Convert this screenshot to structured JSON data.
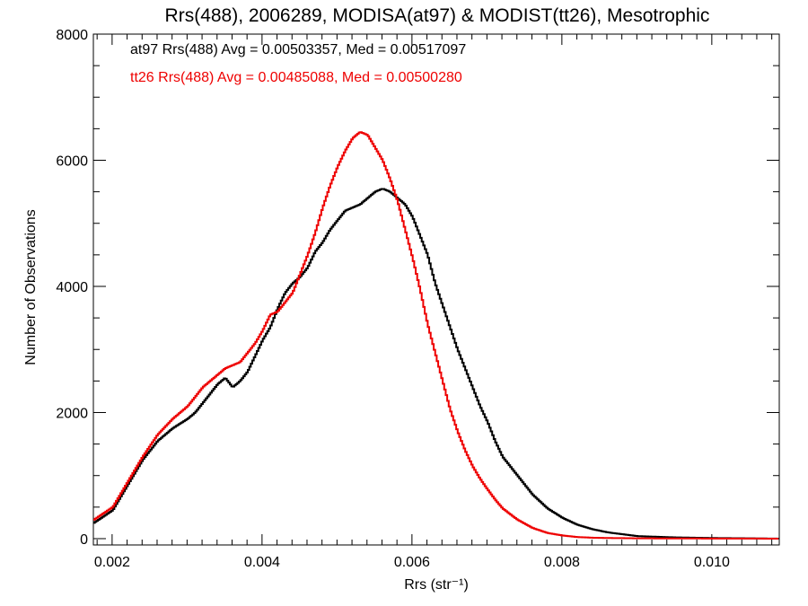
{
  "chart_data": {
    "type": "line",
    "step": true,
    "title": "Rrs(488), 2006289, MODISA(at97) & MODIST(tt26), Mesotrophic",
    "xlabel": "Rrs (str⁻¹)",
    "ylabel": "Number of Observations",
    "xlim": [
      0.00175,
      0.0109
    ],
    "ylim": [
      -100,
      8000
    ],
    "xticks": [
      0.002,
      0.004,
      0.006,
      0.008,
      0.01
    ],
    "xtick_labels": [
      "0.002",
      "0.004",
      "0.006",
      "0.008",
      "0.010"
    ],
    "yticks": [
      0,
      2000,
      4000,
      6000,
      8000
    ],
    "ytick_labels": [
      "0",
      "2000",
      "4000",
      "6000",
      "8000"
    ],
    "grid": false,
    "legend_placement": "top-left",
    "series": [
      {
        "name": "at97",
        "label": "at97 Rrs(488) Avg = 0.00503357, Med = 0.00517097",
        "color": "#000000",
        "x": [
          0.00175,
          0.002,
          0.0022,
          0.0024,
          0.0026,
          0.0028,
          0.003,
          0.0031,
          0.0032,
          0.0033,
          0.0034,
          0.0035,
          0.0036,
          0.0037,
          0.0038,
          0.0039,
          0.004,
          0.0041,
          0.0042,
          0.0043,
          0.0044,
          0.0045,
          0.0046,
          0.0047,
          0.0048,
          0.0049,
          0.005,
          0.0051,
          0.0052,
          0.0053,
          0.0054,
          0.0055,
          0.0056,
          0.0057,
          0.0058,
          0.0059,
          0.006,
          0.0061,
          0.0062,
          0.0063,
          0.0064,
          0.0065,
          0.0066,
          0.0067,
          0.0068,
          0.0069,
          0.007,
          0.0071,
          0.0072,
          0.0074,
          0.0076,
          0.0078,
          0.008,
          0.0082,
          0.0084,
          0.0086,
          0.0088,
          0.009,
          0.0095,
          0.01,
          0.0105,
          0.0109
        ],
        "y": [
          250,
          450,
          850,
          1250,
          1550,
          1750,
          1900,
          2000,
          2150,
          2300,
          2450,
          2550,
          2400,
          2500,
          2650,
          2900,
          3150,
          3350,
          3650,
          3900,
          4050,
          4150,
          4300,
          4550,
          4700,
          4900,
          5050,
          5200,
          5250,
          5300,
          5400,
          5500,
          5550,
          5500,
          5400,
          5300,
          5100,
          4800,
          4500,
          4050,
          3700,
          3350,
          3000,
          2700,
          2400,
          2100,
          1850,
          1550,
          1300,
          1000,
          700,
          480,
          330,
          220,
          150,
          100,
          70,
          40,
          20,
          10,
          5,
          0
        ]
      },
      {
        "name": "tt26",
        "label": "tt26 Rrs(488) Avg = 0.00485088, Med = 0.00500280",
        "color": "#ee0000",
        "x": [
          0.00175,
          0.002,
          0.0022,
          0.0024,
          0.0026,
          0.0028,
          0.003,
          0.0031,
          0.0032,
          0.0033,
          0.0034,
          0.0035,
          0.0036,
          0.0037,
          0.0038,
          0.0039,
          0.004,
          0.0041,
          0.0042,
          0.0043,
          0.0044,
          0.0045,
          0.0046,
          0.0047,
          0.0048,
          0.0049,
          0.005,
          0.0051,
          0.0052,
          0.0053,
          0.0054,
          0.0055,
          0.0056,
          0.0057,
          0.0058,
          0.0059,
          0.006,
          0.0061,
          0.0062,
          0.0063,
          0.0064,
          0.0065,
          0.0066,
          0.0067,
          0.0068,
          0.0069,
          0.007,
          0.0071,
          0.0072,
          0.0074,
          0.0076,
          0.0078,
          0.008,
          0.0082,
          0.0084,
          0.0086,
          0.0088,
          0.009,
          0.0095,
          0.01,
          0.0105,
          0.0109
        ],
        "y": [
          300,
          500,
          900,
          1300,
          1650,
          1900,
          2100,
          2250,
          2400,
          2500,
          2600,
          2700,
          2750,
          2800,
          2950,
          3100,
          3300,
          3550,
          3600,
          3750,
          3900,
          4200,
          4500,
          4850,
          5250,
          5600,
          5900,
          6150,
          6350,
          6450,
          6400,
          6200,
          6000,
          5700,
          5350,
          4900,
          4450,
          3950,
          3400,
          2950,
          2500,
          2050,
          1700,
          1400,
          1150,
          950,
          780,
          620,
          480,
          300,
          170,
          90,
          50,
          25,
          15,
          10,
          8,
          5,
          3,
          2,
          1,
          0
        ]
      }
    ]
  }
}
